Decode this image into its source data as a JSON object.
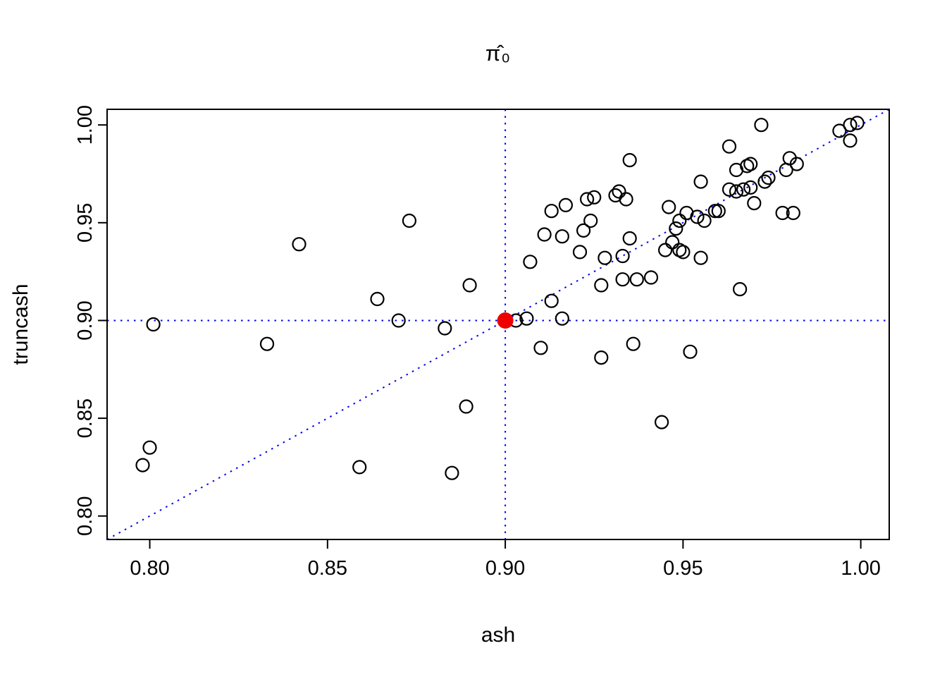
{
  "figure": {
    "title": "π̂₀",
    "xlabel": "ash",
    "ylabel": "truncash"
  },
  "chart_data": {
    "type": "scatter",
    "title": "π̂₀",
    "xlabel": "ash",
    "ylabel": "truncash",
    "xlim": [
      0.788,
      1.008
    ],
    "ylim": [
      0.788,
      1.008
    ],
    "xticks": [
      0.8,
      0.85,
      0.9,
      0.95,
      1.0
    ],
    "yticks": [
      0.8,
      0.85,
      0.9,
      0.95,
      1.0
    ],
    "grid": false,
    "point_style": {
      "shape": "open-circle",
      "stroke": "#000000",
      "radius": 9,
      "stroke_width": 2.2
    },
    "reference_lines": {
      "color": "#0000EE",
      "style": "dotted",
      "horizontal_y": 0.9,
      "vertical_x": 0.9,
      "diagonal": "y=x"
    },
    "highlight_point": {
      "x": 0.9,
      "y": 0.9,
      "color": "#EE0000",
      "radius": 11
    },
    "points": [
      [
        0.798,
        0.826
      ],
      [
        0.8,
        0.835
      ],
      [
        0.801,
        0.898
      ],
      [
        0.833,
        0.888
      ],
      [
        0.842,
        0.939
      ],
      [
        0.859,
        0.825
      ],
      [
        0.864,
        0.911
      ],
      [
        0.87,
        0.9
      ],
      [
        0.873,
        0.951
      ],
      [
        0.883,
        0.896
      ],
      [
        0.885,
        0.822
      ],
      [
        0.889,
        0.856
      ],
      [
        0.89,
        0.918
      ],
      [
        0.903,
        0.9
      ],
      [
        0.906,
        0.901
      ],
      [
        0.907,
        0.93
      ],
      [
        0.91,
        0.886
      ],
      [
        0.911,
        0.944
      ],
      [
        0.913,
        0.91
      ],
      [
        0.913,
        0.956
      ],
      [
        0.916,
        0.901
      ],
      [
        0.916,
        0.943
      ],
      [
        0.917,
        0.959
      ],
      [
        0.921,
        0.935
      ],
      [
        0.922,
        0.946
      ],
      [
        0.923,
        0.962
      ],
      [
        0.924,
        0.951
      ],
      [
        0.925,
        0.963
      ],
      [
        0.927,
        0.881
      ],
      [
        0.927,
        0.918
      ],
      [
        0.928,
        0.932
      ],
      [
        0.931,
        0.964
      ],
      [
        0.932,
        0.966
      ],
      [
        0.933,
        0.921
      ],
      [
        0.933,
        0.933
      ],
      [
        0.934,
        0.962
      ],
      [
        0.935,
        0.942
      ],
      [
        0.935,
        0.982
      ],
      [
        0.936,
        0.888
      ],
      [
        0.937,
        0.921
      ],
      [
        0.941,
        0.922
      ],
      [
        0.944,
        0.848
      ],
      [
        0.945,
        0.936
      ],
      [
        0.946,
        0.958
      ],
      [
        0.947,
        0.94
      ],
      [
        0.948,
        0.947
      ],
      [
        0.949,
        0.936
      ],
      [
        0.949,
        0.951
      ],
      [
        0.95,
        0.935
      ],
      [
        0.951,
        0.955
      ],
      [
        0.952,
        0.884
      ],
      [
        0.954,
        0.953
      ],
      [
        0.955,
        0.932
      ],
      [
        0.955,
        0.971
      ],
      [
        0.956,
        0.951
      ],
      [
        0.959,
        0.956
      ],
      [
        0.96,
        0.956
      ],
      [
        0.963,
        0.967
      ],
      [
        0.963,
        0.989
      ],
      [
        0.965,
        0.966
      ],
      [
        0.965,
        0.977
      ],
      [
        0.966,
        0.916
      ],
      [
        0.967,
        0.967
      ],
      [
        0.968,
        0.979
      ],
      [
        0.969,
        0.968
      ],
      [
        0.969,
        0.98
      ],
      [
        0.97,
        0.96
      ],
      [
        0.972,
        1.0
      ],
      [
        0.973,
        0.971
      ],
      [
        0.974,
        0.973
      ],
      [
        0.978,
        0.955
      ],
      [
        0.979,
        0.977
      ],
      [
        0.98,
        0.983
      ],
      [
        0.981,
        0.955
      ],
      [
        0.982,
        0.98
      ],
      [
        0.994,
        0.997
      ],
      [
        0.997,
        0.992
      ],
      [
        0.997,
        1.0
      ],
      [
        0.999,
        1.001
      ]
    ]
  }
}
